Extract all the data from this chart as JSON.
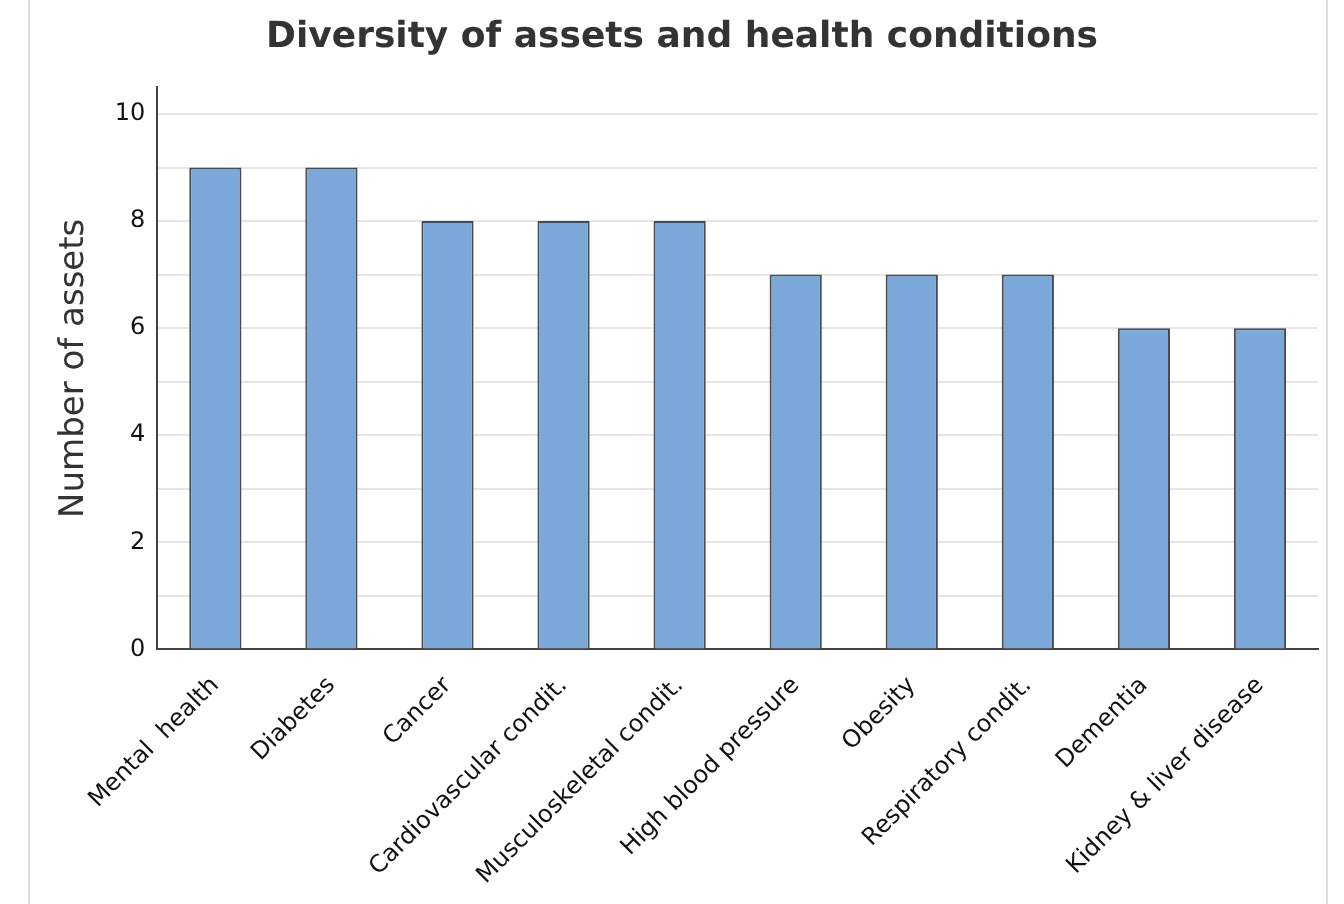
{
  "chart_data": {
    "type": "bar",
    "title": "Diversity of assets and health conditions",
    "ylabel": "Number of assets",
    "categories": [
      "Mental  health",
      "Diabetes",
      "Cancer",
      "Cardiovascular condit.",
      "Musculoskeletal condit.",
      "High blood pressure",
      "Obesity",
      "Respiratory condit.",
      "Dementia",
      "Kidney & liver disease"
    ],
    "values": [
      9,
      9,
      8,
      8,
      8,
      7,
      7,
      7,
      6,
      6
    ],
    "color": "#7ba7d9",
    "ylim": [
      0,
      10.5
    ],
    "yticks": [
      0,
      {
        "value": 1,
        "label": null
      },
      2,
      {
        "value": 3,
        "label": null
      },
      4,
      {
        "value": 5,
        "label": null
      },
      6,
      {
        "value": 7,
        "label": null
      },
      8,
      {
        "value": 9,
        "label": null
      },
      10
    ],
    "grid": "y",
    "legend": false
  }
}
